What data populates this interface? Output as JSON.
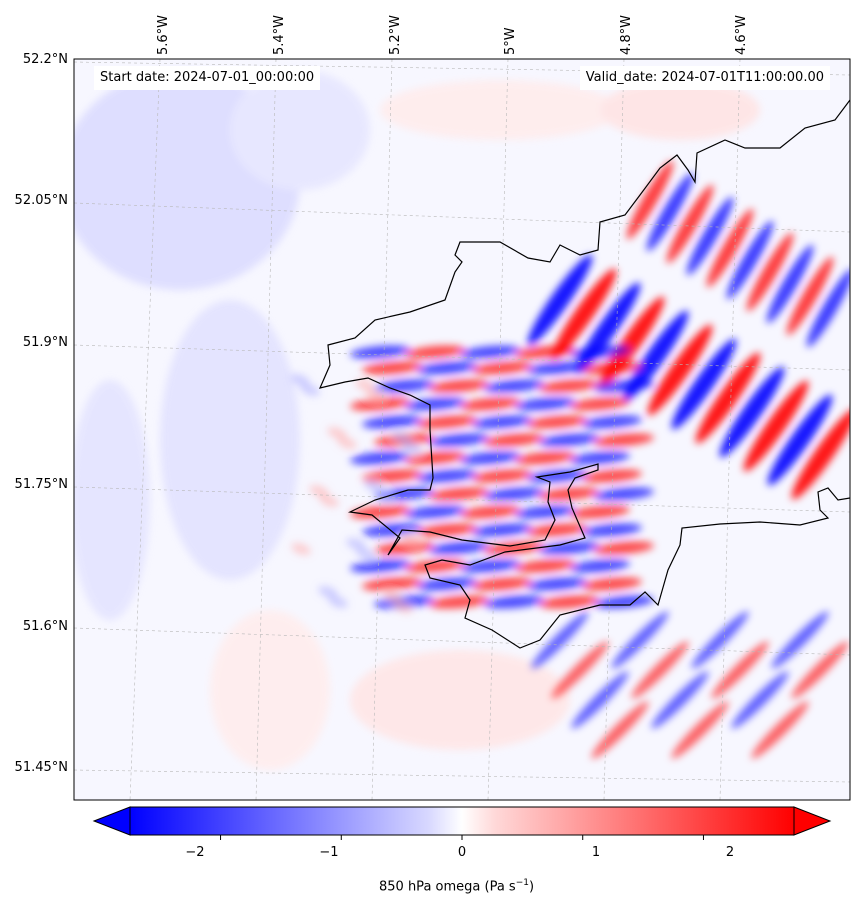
{
  "map": {
    "start_date": "Start date: 2024-07-01_00:00:00",
    "valid_date": "Valid_date: 2024-07-01T11:00:00.00",
    "lat_labels": [
      "52.2°N",
      "52.05°N",
      "51.9°N",
      "51.75°N",
      "51.6°N",
      "51.45°N"
    ],
    "lon_labels": [
      "5.6°W",
      "5.4°W",
      "5.2°W",
      "5°W",
      "4.8°W",
      "4.6°W"
    ],
    "colors": {
      "negative": "#0000ff",
      "positive": "#ff0000",
      "neutral": "#ffffff",
      "coastline": "#000000",
      "gridline": "#b0b0b0"
    }
  },
  "colorbar": {
    "ticks": [
      "−2",
      "−1",
      "0",
      "1",
      "2"
    ],
    "tick_values": [
      -2,
      -1,
      0,
      1,
      2
    ],
    "range": [
      -2.75,
      2.75
    ],
    "label": "850 hPa omega (Pa s",
    "label_sup": "−1",
    "label_end": ")"
  }
}
